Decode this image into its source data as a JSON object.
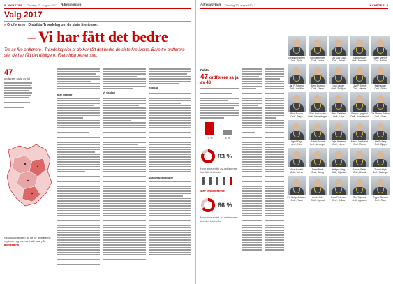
{
  "left_page": {
    "page_number": "8",
    "section": "NYHETER",
    "date": "Onsdag 23. august 2017",
    "brand": "Adresseavisen",
    "label": "Valg 2017",
    "kicker_prefix": "»",
    "kicker": "Ordførerne i Distrikts-Trøndelag om de siste fire årene:",
    "headline": "– Vi har fått det bedre",
    "ingress": "Tre av fire ordførere i Trøndelag sier at de har fått det bedre de siste fire årene. Bare tre ordførere sier de har fått det dårligere. Fremtidstroen er stor.",
    "stat_value": "47",
    "stat_caption": "ordførere sa ja av 48",
    "subheads": [
      "Mer penger",
      "Vi skal ut",
      "Rokkap",
      "Nasjonalordninger"
    ],
    "info_note": "Se lokalgrafikken av de 47 ordførerne i regionen og les hvert sitt svar på",
    "info_link": "adressa.no"
  },
  "right_page": {
    "page_number": "9",
    "section": "NYHETER",
    "date": "Onsdag 23. august 2017",
    "brand": "Adresseavisen",
    "facts_title": "Fakta",
    "facts_stat_value": "47",
    "facts_stat_caption": "ordførere sa ja av 48",
    "donut_stats": [
      {
        "value": 83,
        "label": "83 %",
        "caption": "Hvor stor andel av ordførerne har fått det bedre"
      },
      {
        "value": 66,
        "label": "66 %",
        "caption": "Hvor stor andel av ordførerne tror det blir bedre"
      }
    ],
    "mini_bars": {
      "values": [
        17,
        6
      ],
      "labels": [
        "17 %",
        "6 %"
      ]
    },
    "people_caption": "4 av fem ordførere"
  },
  "mayors": [
    {
      "name": "Ole Bjarne Bryhn",
      "title": "Ordf., Tydal"
    },
    {
      "name": "Tor Ingebretsen",
      "title": "Ordf., Frosta"
    },
    {
      "name": "Ola Olav Gaut",
      "title": "Ordf., Meldal"
    },
    {
      "name": "Sigrid Volden",
      "title": "Ordf., Rennebu"
    },
    {
      "name": "Bjørn Iversen",
      "title": "Ordf., Malvik"
    },
    {
      "name": "Jan F. Rotterud",
      "title": "Ordf., Holtålen"
    },
    {
      "name": "Bjørn Brumbo",
      "title": "Ordf., Skaun"
    },
    {
      "name": "Leni Larsen",
      "title": "Ordf., Snillfjord"
    },
    {
      "name": "Jan P. Sverd",
      "title": "Ordf., Hemne"
    },
    {
      "name": "Kai Haugen",
      "title": "Ordf., Selbu"
    },
    {
      "name": "Bent Fiskum",
      "title": "Ordf., Frøya"
    },
    {
      "name": "Stian Brekkveien",
      "title": "Ordf., Namsskogan"
    },
    {
      "name": "Vivek Dalviken",
      "title": "Ordf., Leka"
    },
    {
      "name": "Steinar Lyngstad",
      "title": "Ordf., Namdalseid"
    },
    {
      "name": "Ole Morten Balstad",
      "title": "Ordf., Osen"
    },
    {
      "name": "Ingrid Sogn",
      "title": "Ordf., Hitra"
    },
    {
      "name": "Robert Svarva",
      "title": "Ordf., Levanger"
    },
    {
      "name": "Terje Hammer",
      "title": "Ordf., Lierne"
    },
    {
      "name": "Marius Dagfinrud",
      "title": "Ordf., Røros"
    },
    {
      "name": "Ida Stuberg",
      "title": "Ordf., Bjugn"
    },
    {
      "name": "Arve Moseid",
      "title": "Ordf., Verran"
    },
    {
      "name": "Svein Bernt",
      "title": "Ordf., Grong"
    },
    {
      "name": "Hallgeir Berg",
      "title": "Ordf., Stjørdal"
    },
    {
      "name": "Gunnar Bakke",
      "title": "Ordf., Orkdal"
    },
    {
      "name": "Trond Helge",
      "title": "Ordf., Flatanger"
    },
    {
      "name": "Per Helge Johnsen",
      "title": "Ordf., Rissa"
    },
    {
      "name": "Amar Helle",
      "title": "Ordf., Oppdal"
    },
    {
      "name": "Rune Pedersen",
      "title": "Ordf., Snåsa"
    },
    {
      "name": "Tom Myrvold",
      "title": "Ordf., Agdenes"
    },
    {
      "name": "Trygve Sandvik",
      "title": "Ordf., Roan"
    }
  ]
}
